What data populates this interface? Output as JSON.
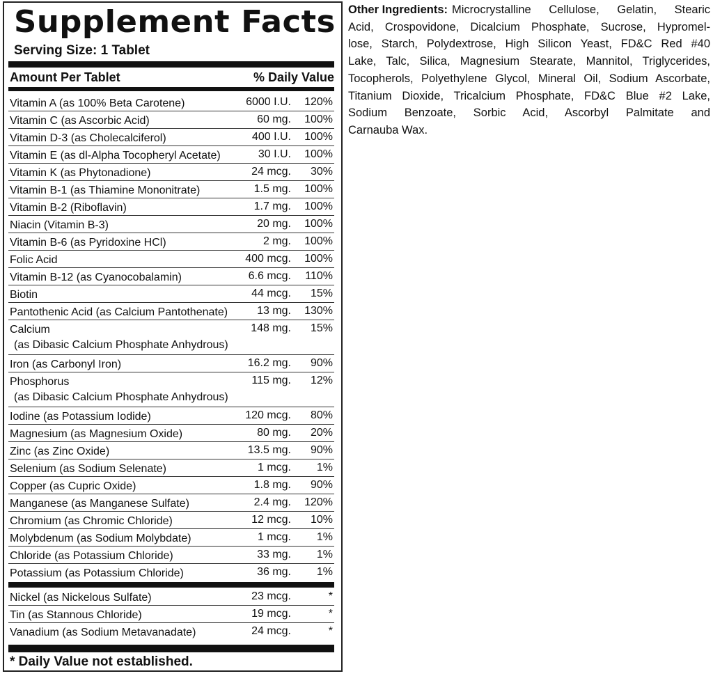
{
  "label": {
    "title": "Supplement Facts",
    "serving_size": "Serving Size: 1 Tablet",
    "header_amount": "Amount Per Tablet",
    "header_dv": "% Daily Value",
    "nutrients": [
      {
        "name": "Vitamin A (as 100% Beta Carotene)",
        "amount": "6000 I.U.",
        "dv": "120%"
      },
      {
        "name": "Vitamin C (as Ascorbic Acid)",
        "amount": "60 mg.",
        "dv": "100%"
      },
      {
        "name": "Vitamin D-3 (as Cholecalciferol)",
        "amount": "400 I.U.",
        "dv": "100%"
      },
      {
        "name": "Vitamin E (as dl-Alpha Tocopheryl Acetate)",
        "amount": "30 I.U.",
        "dv": "100%"
      },
      {
        "name": "Vitamin K (as Phytonadione)",
        "amount": "24 mcg.",
        "dv": "30%"
      },
      {
        "name": "Vitamin B-1 (as Thiamine Mononitrate)",
        "amount": "1.5 mg.",
        "dv": "100%"
      },
      {
        "name": "Vitamin B-2 (Riboflavin)",
        "amount": "1.7 mg.",
        "dv": "100%"
      },
      {
        "name": "Niacin (Vitamin B-3)",
        "amount": "20 mg.",
        "dv": "100%"
      },
      {
        "name": "Vitamin B-6 (as Pyridoxine HCl)",
        "amount": "2 mg.",
        "dv": "100%"
      },
      {
        "name": "Folic Acid",
        "amount": "400 mcg.",
        "dv": "100%"
      },
      {
        "name": "Vitamin B-12 (as Cyanocobalamin)",
        "amount": "6.6 mcg.",
        "dv": "110%"
      },
      {
        "name": "Biotin",
        "amount": "44 mcg.",
        "dv": "15%"
      },
      {
        "name": "Pantothenic Acid (as Calcium Pantothenate)",
        "amount": "13 mg.",
        "dv": "130%"
      },
      {
        "name": "Calcium",
        "sub": "(as Dibasic Calcium Phosphate Anhydrous)",
        "amount": "148 mg.",
        "dv": "15%"
      },
      {
        "name": "Iron (as Carbonyl Iron)",
        "amount": "16.2 mg.",
        "dv": "90%"
      },
      {
        "name": "Phosphorus",
        "sub": "(as Dibasic Calcium Phosphate Anhydrous)",
        "amount": "115 mg.",
        "dv": "12%"
      },
      {
        "name": "Iodine (as Potassium Iodide)",
        "amount": "120 mcg.",
        "dv": "80%"
      },
      {
        "name": "Magnesium (as Magnesium Oxide)",
        "amount": "80 mg.",
        "dv": "20%"
      },
      {
        "name": "Zinc (as Zinc Oxide)",
        "amount": "13.5 mg.",
        "dv": "90%"
      },
      {
        "name": "Selenium (as Sodium Selenate)",
        "amount": "1 mcg.",
        "dv": "1%"
      },
      {
        "name": "Copper (as Cupric Oxide)",
        "amount": "1.8 mg.",
        "dv": "90%"
      },
      {
        "name": "Manganese (as Manganese Sulfate)",
        "amount": "2.4 mg.",
        "dv": "120%"
      },
      {
        "name": "Chromium (as Chromic Chloride)",
        "amount": "12 mcg.",
        "dv": "10%"
      },
      {
        "name": "Molybdenum (as Sodium Molybdate)",
        "amount": "1 mcg.",
        "dv": "1%"
      },
      {
        "name": "Chloride (as Potassium Chloride)",
        "amount": "33 mg.",
        "dv": "1%"
      },
      {
        "name": "Potassium (as Potassium Chloride)",
        "amount": "36 mg.",
        "dv": "1%"
      }
    ],
    "other_nutrients": [
      {
        "name": "Nickel (as Nickelous Sulfate)",
        "amount": "23 mcg.",
        "dv": "*"
      },
      {
        "name": "Tin (as Stannous Chloride)",
        "amount": "19 mcg.",
        "dv": "*"
      },
      {
        "name": "Vanadium (as Sodium Metavanadate)",
        "amount": "24 mcg.",
        "dv": "*"
      }
    ],
    "footnote": "* Daily Value not established."
  },
  "other_ingredients": {
    "label": "Other Ingredients:",
    "lines": [
      "Microcrystalline Cellulose, Gelatin, Stearic",
      "Acid, Crospovidone, Dicalcium Phosphate, Sucrose, Hypromel-",
      "lose, Starch, Polydextrose, High Silicon Yeast, FD&C Red #40",
      "Lake, Talc, Silica, Magnesium Stearate, Mannitol, Triglycerides,",
      "Tocopherols, Polyethylene Glycol, Mineral Oil, Sodium Ascorbate,",
      "Titanium Dioxide, Tricalcium Phosphate, FD&C Blue #2 Lake,",
      "Sodium Benzoate, Sorbic Acid, Ascorbyl Palmitate and",
      "Carnauba Wax."
    ]
  }
}
